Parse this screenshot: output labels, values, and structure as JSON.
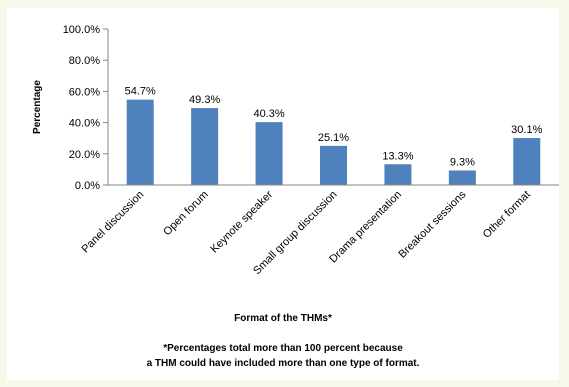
{
  "chart_data": {
    "type": "bar",
    "categories": [
      "Panel discussion",
      "Open forum",
      "Keynote speaker",
      "Small group discussion",
      "Drama presentation",
      "Breakout sessions",
      "Other format"
    ],
    "values": [
      54.7,
      49.3,
      40.3,
      25.1,
      13.3,
      9.3,
      30.1
    ],
    "data_labels": [
      "54.7%",
      "49.3%",
      "40.3%",
      "25.1%",
      "13.3%",
      "9.3%",
      "30.1%"
    ],
    "ylabel": "Percentage",
    "xlabel": "Format of the THMs*",
    "ylim": [
      0,
      100
    ],
    "yticks": [
      0,
      20,
      40,
      60,
      80,
      100
    ],
    "ytick_labels": [
      "0.0%",
      "20.0%",
      "40.0%",
      "60.0%",
      "80.0%",
      "100.0%"
    ],
    "grid": false,
    "legend": "none",
    "bar_color": "#4f81bd"
  },
  "footnote": {
    "line1": "*Percentages total more than 100 percent because",
    "line2": "a THM could have included more than one type of format."
  }
}
